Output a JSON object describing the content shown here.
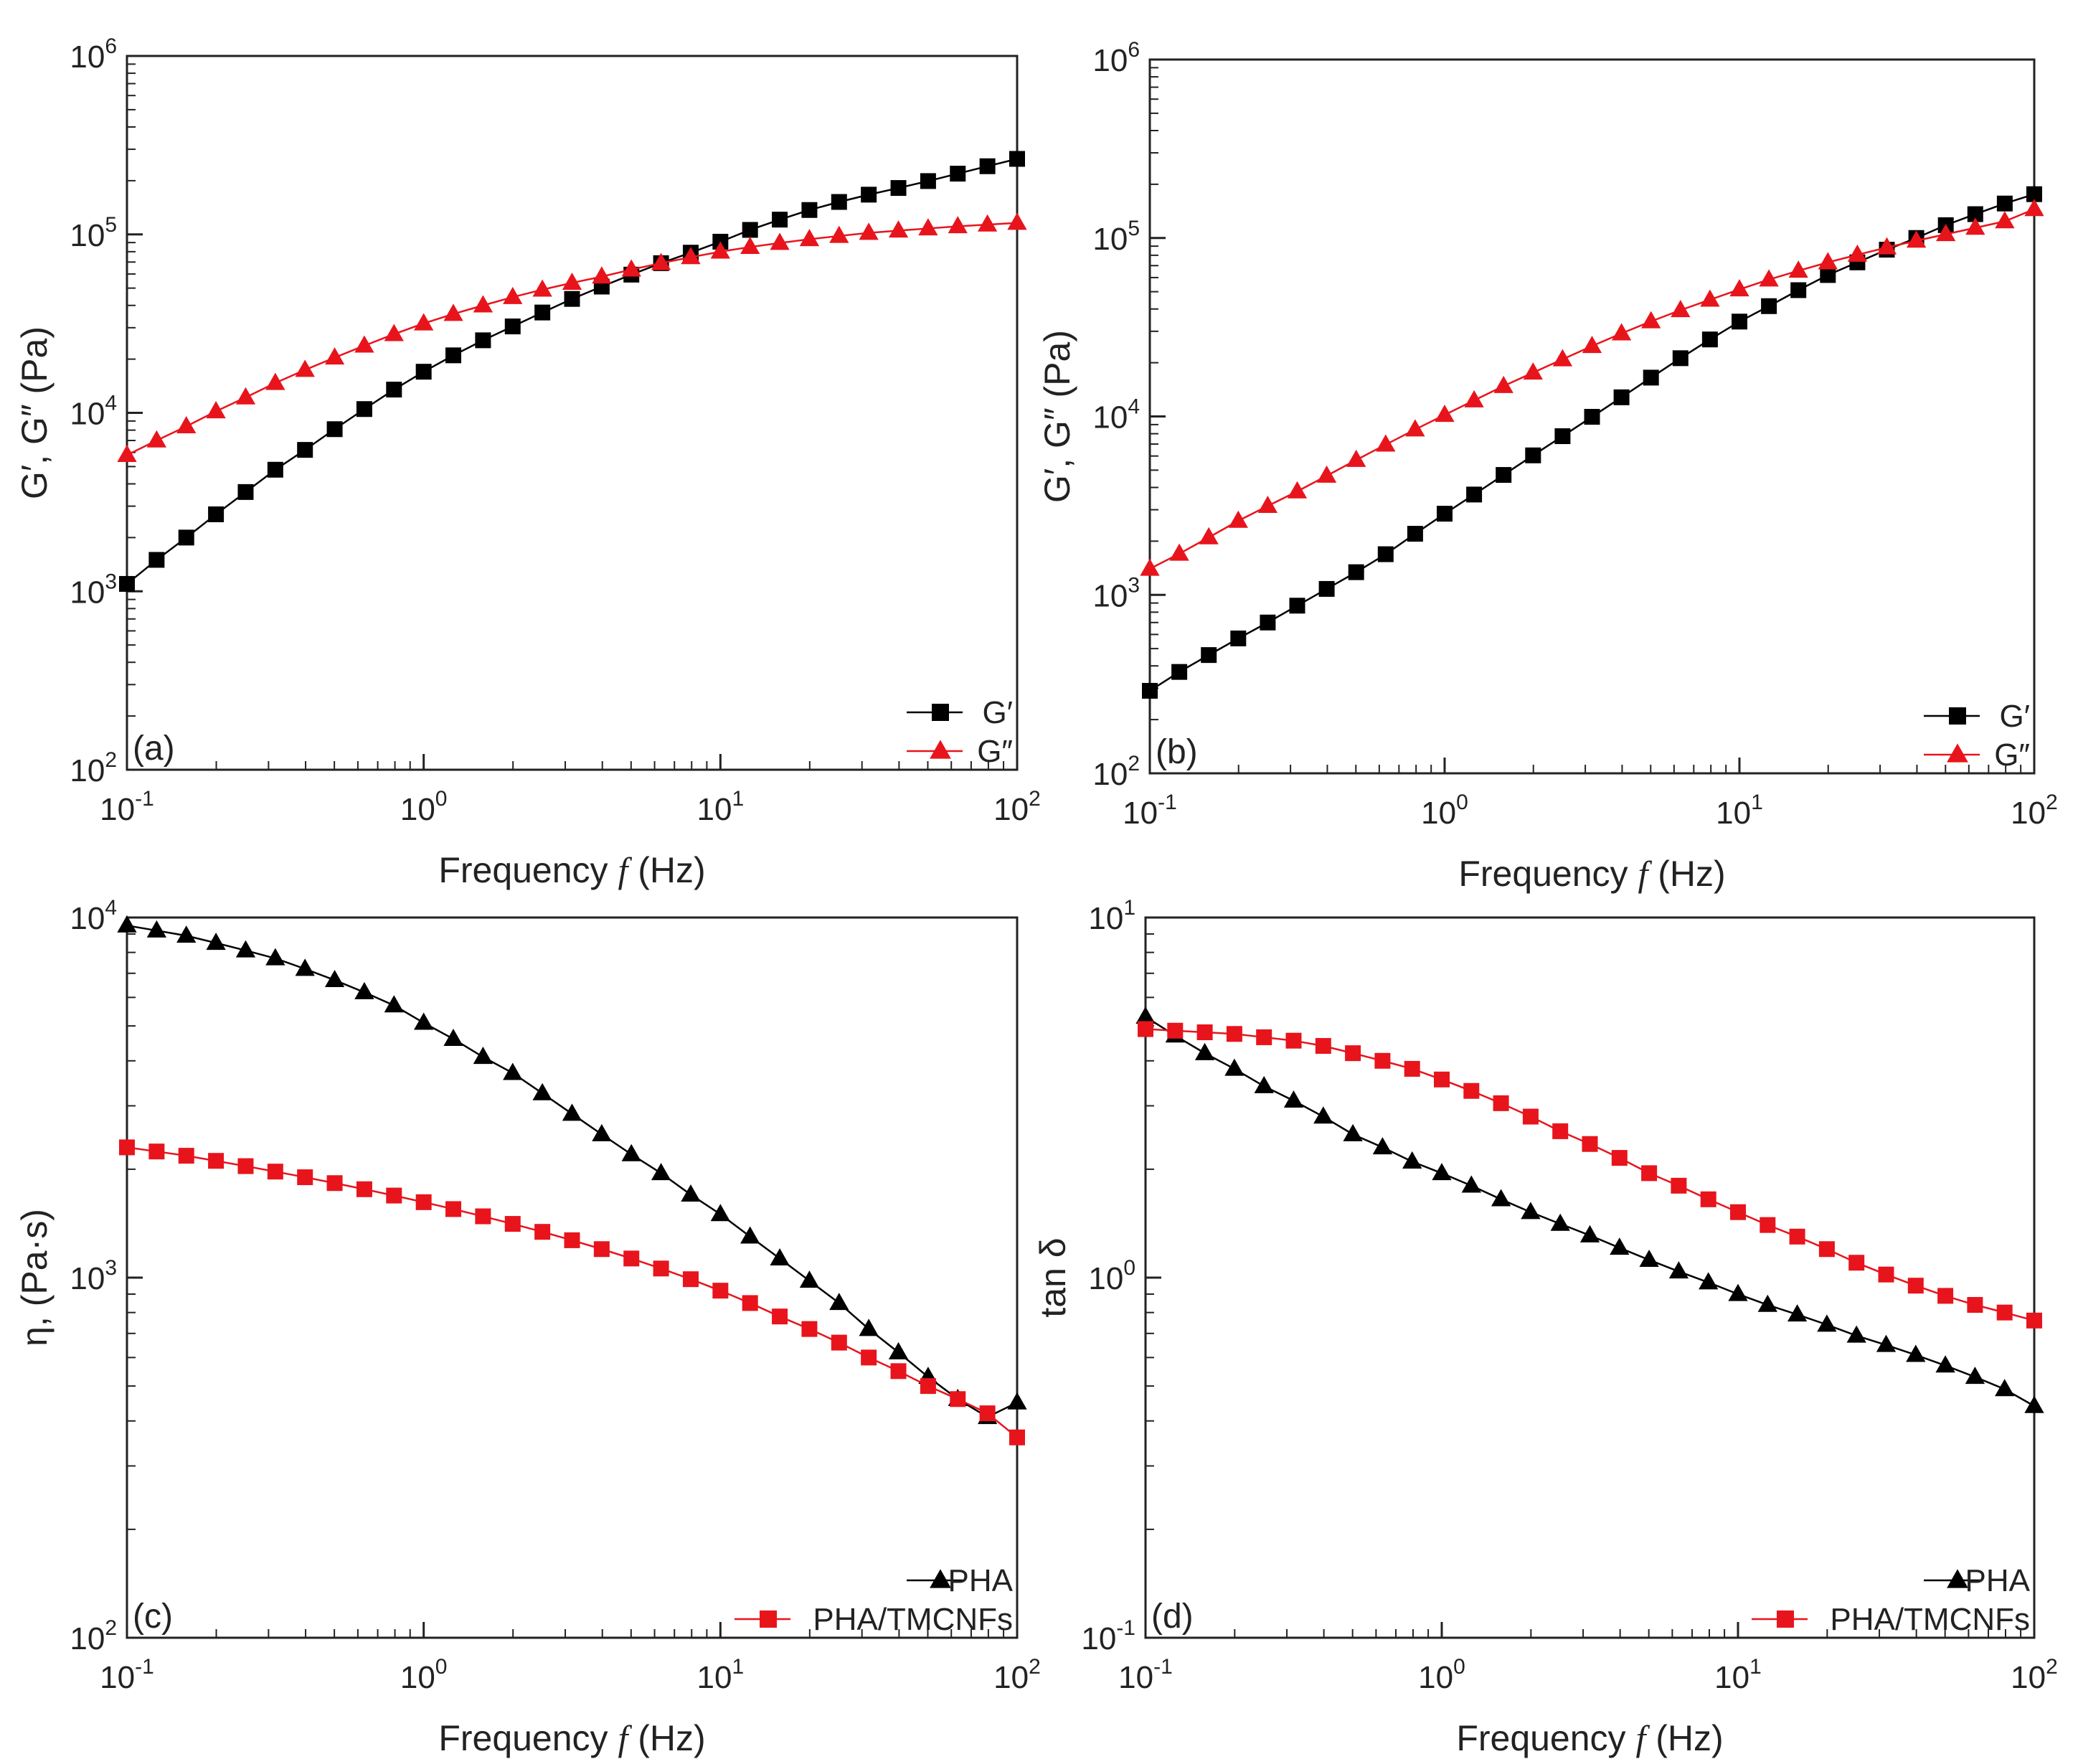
{
  "figure": {
    "background": "#ffffff"
  },
  "chart_data": [
    {
      "id": "a",
      "type": "line",
      "panel_label": "(a)",
      "xlabel": "Frequency",
      "xlabel_symbol": "f",
      "xlabel_unit": "(Hz)",
      "ylabel": "G′, G″ (Pa)",
      "xscale": "log",
      "yscale": "log",
      "xlim": [
        0.1,
        100
      ],
      "ylim": [
        100,
        1000000
      ],
      "xticks": [
        {
          "base": "10",
          "exp": "-1"
        },
        {
          "base": "10",
          "exp": "0"
        },
        {
          "base": "10",
          "exp": "1"
        },
        {
          "base": "10",
          "exp": "2"
        }
      ],
      "yticks": [
        {
          "base": "10",
          "exp": "2"
        },
        {
          "base": "10",
          "exp": "3"
        },
        {
          "base": "10",
          "exp": "4"
        },
        {
          "base": "10",
          "exp": "5"
        },
        {
          "base": "10",
          "exp": "6"
        }
      ],
      "legend_position": "bottom-right",
      "series": [
        {
          "name": "G′",
          "marker": "square",
          "color": "#000000",
          "x_start": 0.1,
          "x_end": 100,
          "n_points": 31,
          "values": [
            1100,
            1500,
            2000,
            2700,
            3600,
            4800,
            6200,
            8100,
            10500,
            13500,
            17000,
            21000,
            25500,
            30500,
            36500,
            43500,
            51000,
            59500,
            69000,
            79000,
            91000,
            106000,
            121000,
            137000,
            152000,
            167000,
            182000,
            199000,
            219000,
            241000,
            265000
          ]
        },
        {
          "name": "G″",
          "marker": "triangle",
          "color": "#e8141c",
          "x_start": 0.1,
          "x_end": 100,
          "n_points": 31,
          "values": [
            5800,
            7000,
            8400,
            10200,
            12200,
            14700,
            17400,
            20400,
            23800,
            27600,
            31700,
            35800,
            40000,
            44500,
            49000,
            53500,
            58000,
            63500,
            69000,
            74500,
            80000,
            85000,
            89500,
            94000,
            98000,
            102000,
            105000,
            108000,
            111000,
            113500,
            116000
          ]
        }
      ]
    },
    {
      "id": "b",
      "type": "line",
      "panel_label": "(b)",
      "xlabel": "Frequency",
      "xlabel_symbol": "f",
      "xlabel_unit": "(Hz)",
      "ylabel": "G′, G″ (Pa)",
      "xscale": "log",
      "yscale": "log",
      "xlim": [
        0.1,
        100
      ],
      "ylim": [
        100,
        1000000
      ],
      "xticks": [
        {
          "base": "10",
          "exp": "-1"
        },
        {
          "base": "10",
          "exp": "0"
        },
        {
          "base": "10",
          "exp": "1"
        },
        {
          "base": "10",
          "exp": "2"
        }
      ],
      "yticks": [
        {
          "base": "10",
          "exp": "2"
        },
        {
          "base": "10",
          "exp": "3"
        },
        {
          "base": "10",
          "exp": "4"
        },
        {
          "base": "10",
          "exp": "5"
        },
        {
          "base": "10",
          "exp": "6"
        }
      ],
      "legend_position": "bottom-right",
      "series": [
        {
          "name": "G′",
          "marker": "square",
          "color": "#000000",
          "x_start": 0.1,
          "x_end": 100,
          "n_points": 31,
          "values": [
            290,
            370,
            460,
            570,
            700,
            870,
            1080,
            1340,
            1690,
            2200,
            2850,
            3650,
            4700,
            6050,
            7750,
            9950,
            12800,
            16500,
            21200,
            27000,
            34000,
            41500,
            51000,
            62000,
            73000,
            86000,
            100000,
            118000,
            136000,
            156000,
            176000
          ]
        },
        {
          "name": "G″",
          "marker": "triangle",
          "color": "#e8141c",
          "x_start": 0.1,
          "x_end": 100,
          "n_points": 31,
          "values": [
            1400,
            1700,
            2100,
            2600,
            3150,
            3800,
            4650,
            5700,
            6950,
            8450,
            10200,
            12300,
            14800,
            17600,
            20900,
            24800,
            29200,
            34100,
            39400,
            45100,
            51500,
            58500,
            65500,
            73000,
            80500,
            88500,
            96500,
            105000,
            114000,
            124000,
            145000
          ]
        }
      ]
    },
    {
      "id": "c",
      "type": "line",
      "panel_label": "(c)",
      "xlabel": "Frequency",
      "xlabel_symbol": "f",
      "xlabel_unit": "(Hz)",
      "ylabel": "η, (Pa·s)",
      "xscale": "log",
      "yscale": "log",
      "xlim": [
        0.1,
        100
      ],
      "ylim": [
        100,
        10000
      ],
      "xticks": [
        {
          "base": "10",
          "exp": "-1"
        },
        {
          "base": "10",
          "exp": "0"
        },
        {
          "base": "10",
          "exp": "1"
        },
        {
          "base": "10",
          "exp": "2"
        }
      ],
      "yticks": [
        {
          "base": "10",
          "exp": "2"
        },
        {
          "base": "10",
          "exp": "3"
        },
        {
          "base": "10",
          "exp": "4"
        }
      ],
      "legend_position": "bottom-right",
      "series": [
        {
          "name": "PHA",
          "marker": "triangle",
          "color": "#000000",
          "x_start": 0.1,
          "x_end": 100,
          "n_points": 31,
          "values": [
            9500,
            9200,
            8900,
            8500,
            8100,
            7700,
            7200,
            6700,
            6200,
            5700,
            5100,
            4600,
            4100,
            3700,
            3250,
            2850,
            2500,
            2200,
            1950,
            1700,
            1500,
            1300,
            1130,
            980,
            850,
            720,
            620,
            530,
            460,
            410,
            450
          ]
        },
        {
          "name": "PHA/TMCNFs",
          "marker": "square",
          "color": "#e8141c",
          "x_start": 0.1,
          "x_end": 100,
          "n_points": 31,
          "values": [
            2300,
            2240,
            2180,
            2110,
            2040,
            1970,
            1900,
            1830,
            1760,
            1690,
            1620,
            1550,
            1480,
            1410,
            1340,
            1270,
            1200,
            1130,
            1060,
            990,
            920,
            850,
            780,
            720,
            660,
            600,
            550,
            500,
            460,
            420,
            360
          ]
        }
      ]
    },
    {
      "id": "d",
      "type": "line",
      "panel_label": "(d)",
      "xlabel": "Frequency",
      "xlabel_symbol": "f",
      "xlabel_unit": "(Hz)",
      "ylabel": "tan δ",
      "xscale": "log",
      "yscale": "log",
      "xlim": [
        0.1,
        100
      ],
      "ylim": [
        0.1,
        10
      ],
      "xticks": [
        {
          "base": "10",
          "exp": "-1"
        },
        {
          "base": "10",
          "exp": "0"
        },
        {
          "base": "10",
          "exp": "1"
        },
        {
          "base": "10",
          "exp": "2"
        }
      ],
      "yticks": [
        {
          "base": "10",
          "exp": "-1"
        },
        {
          "base": "10",
          "exp": "0"
        },
        {
          "base": "10",
          "exp": "1"
        }
      ],
      "legend_position": "bottom-right",
      "series": [
        {
          "name": "PHA",
          "marker": "triangle",
          "color": "#000000",
          "x_start": 0.1,
          "x_end": 100,
          "n_points": 31,
          "values": [
            5.3,
            4.7,
            4.2,
            3.8,
            3.4,
            3.1,
            2.8,
            2.5,
            2.3,
            2.1,
            1.95,
            1.8,
            1.65,
            1.52,
            1.41,
            1.31,
            1.21,
            1.12,
            1.04,
            0.97,
            0.9,
            0.84,
            0.79,
            0.74,
            0.69,
            0.65,
            0.61,
            0.57,
            0.53,
            0.49,
            0.44
          ]
        },
        {
          "name": "PHA/TMCNFs",
          "marker": "square",
          "color": "#e8141c",
          "x_start": 0.1,
          "x_end": 100,
          "n_points": 31,
          "values": [
            4.9,
            4.85,
            4.8,
            4.75,
            4.65,
            4.55,
            4.4,
            4.2,
            4.0,
            3.8,
            3.55,
            3.3,
            3.05,
            2.8,
            2.55,
            2.35,
            2.15,
            1.95,
            1.8,
            1.65,
            1.52,
            1.4,
            1.3,
            1.2,
            1.1,
            1.02,
            0.95,
            0.89,
            0.84,
            0.8,
            0.76
          ]
        }
      ]
    }
  ]
}
